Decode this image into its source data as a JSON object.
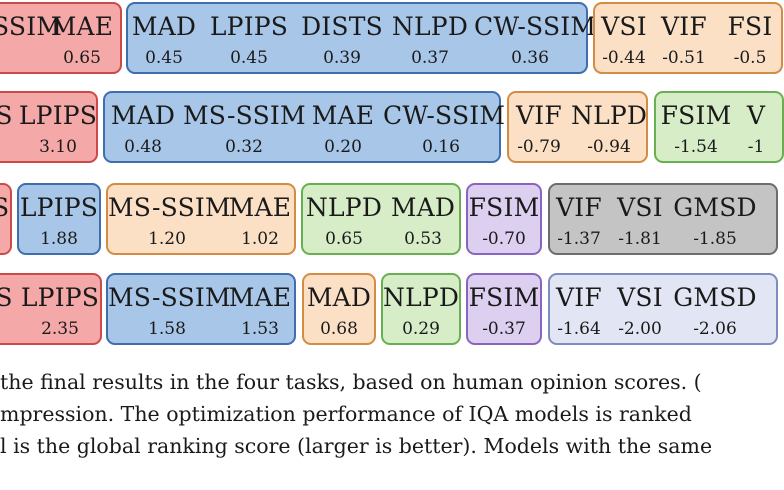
{
  "rows": [
    {
      "groups": [
        {
          "color": "red",
          "models": [
            {
              "name": "SSIM",
              "score": ""
            },
            {
              "name": "MAE",
              "score": "0.65"
            }
          ]
        },
        {
          "color": "blue",
          "models": [
            {
              "name": "MAD",
              "score": "0.45"
            },
            {
              "name": "LPIPS",
              "score": "0.45"
            },
            {
              "name": "DISTS",
              "score": "0.39"
            },
            {
              "name": "NLPD",
              "score": "0.37"
            },
            {
              "name": "CW-SSIM",
              "score": "0.36"
            }
          ]
        },
        {
          "color": "orange",
          "models": [
            {
              "name": "VSI",
              "score": "-0.44"
            },
            {
              "name": "VIF",
              "score": "-0.51"
            },
            {
              "name": "FSI",
              "score": "-0.5"
            }
          ]
        }
      ]
    },
    {
      "groups": [
        {
          "color": "red",
          "models": [
            {
              "name": "S",
              "score": ""
            },
            {
              "name": "LPIPS",
              "score": "3.10"
            }
          ]
        },
        {
          "color": "blue",
          "models": [
            {
              "name": "MAD",
              "score": "0.48"
            },
            {
              "name": "MS-SSIM",
              "score": "0.32"
            },
            {
              "name": "MAE",
              "score": "0.20"
            },
            {
              "name": "CW-SSIM",
              "score": "0.16"
            }
          ]
        },
        {
          "color": "orange",
          "models": [
            {
              "name": "VIF",
              "score": "-0.79"
            },
            {
              "name": "NLPD",
              "score": "-0.94"
            }
          ]
        },
        {
          "color": "green",
          "models": [
            {
              "name": "FSIM",
              "score": "-1.54"
            },
            {
              "name": "V",
              "score": "-1"
            }
          ]
        }
      ]
    },
    {
      "groups": [
        {
          "color": "red",
          "models": [
            {
              "name": "S",
              "score": ""
            }
          ]
        },
        {
          "color": "blue",
          "models": [
            {
              "name": "LPIPS",
              "score": "1.88"
            }
          ]
        },
        {
          "color": "orange",
          "models": [
            {
              "name": "MS-SSIM",
              "score": "1.20"
            },
            {
              "name": "MAE",
              "score": "1.02"
            }
          ]
        },
        {
          "color": "green",
          "models": [
            {
              "name": "NLPD",
              "score": "0.65"
            },
            {
              "name": "MAD",
              "score": "0.53"
            }
          ]
        },
        {
          "color": "purple",
          "models": [
            {
              "name": "FSIM",
              "score": "-0.70"
            }
          ]
        },
        {
          "color": "gray",
          "models": [
            {
              "name": "VIF",
              "score": "-1.37"
            },
            {
              "name": "VSI",
              "score": "-1.81"
            },
            {
              "name": "GMSD",
              "score": "-1.85"
            }
          ]
        }
      ]
    },
    {
      "groups": [
        {
          "color": "red",
          "models": [
            {
              "name": "S",
              "score": ""
            },
            {
              "name": "LPIPS",
              "score": "2.35"
            }
          ]
        },
        {
          "color": "blue",
          "models": [
            {
              "name": "MS-SSIM",
              "score": "1.58"
            },
            {
              "name": "MAE",
              "score": "1.53"
            }
          ]
        },
        {
          "color": "orange",
          "models": [
            {
              "name": "MAD",
              "score": "0.68"
            }
          ]
        },
        {
          "color": "green",
          "models": [
            {
              "name": "NLPD",
              "score": "0.29"
            }
          ]
        },
        {
          "color": "purple",
          "models": [
            {
              "name": "FSIM",
              "score": "-0.37"
            }
          ]
        },
        {
          "color": "lavender",
          "models": [
            {
              "name": "VIF",
              "score": "-1.64"
            },
            {
              "name": "VSI",
              "score": "-2.00"
            },
            {
              "name": "GMSD",
              "score": "-2.06"
            }
          ]
        }
      ]
    }
  ],
  "caption": {
    "line1": "the final results in the four tasks, based on human opinion scores. (",
    "line2": "mpression. The optimization performance of IQA models is ranked",
    "line3": "l is the global ranking score (larger is better). Models with the same"
  }
}
